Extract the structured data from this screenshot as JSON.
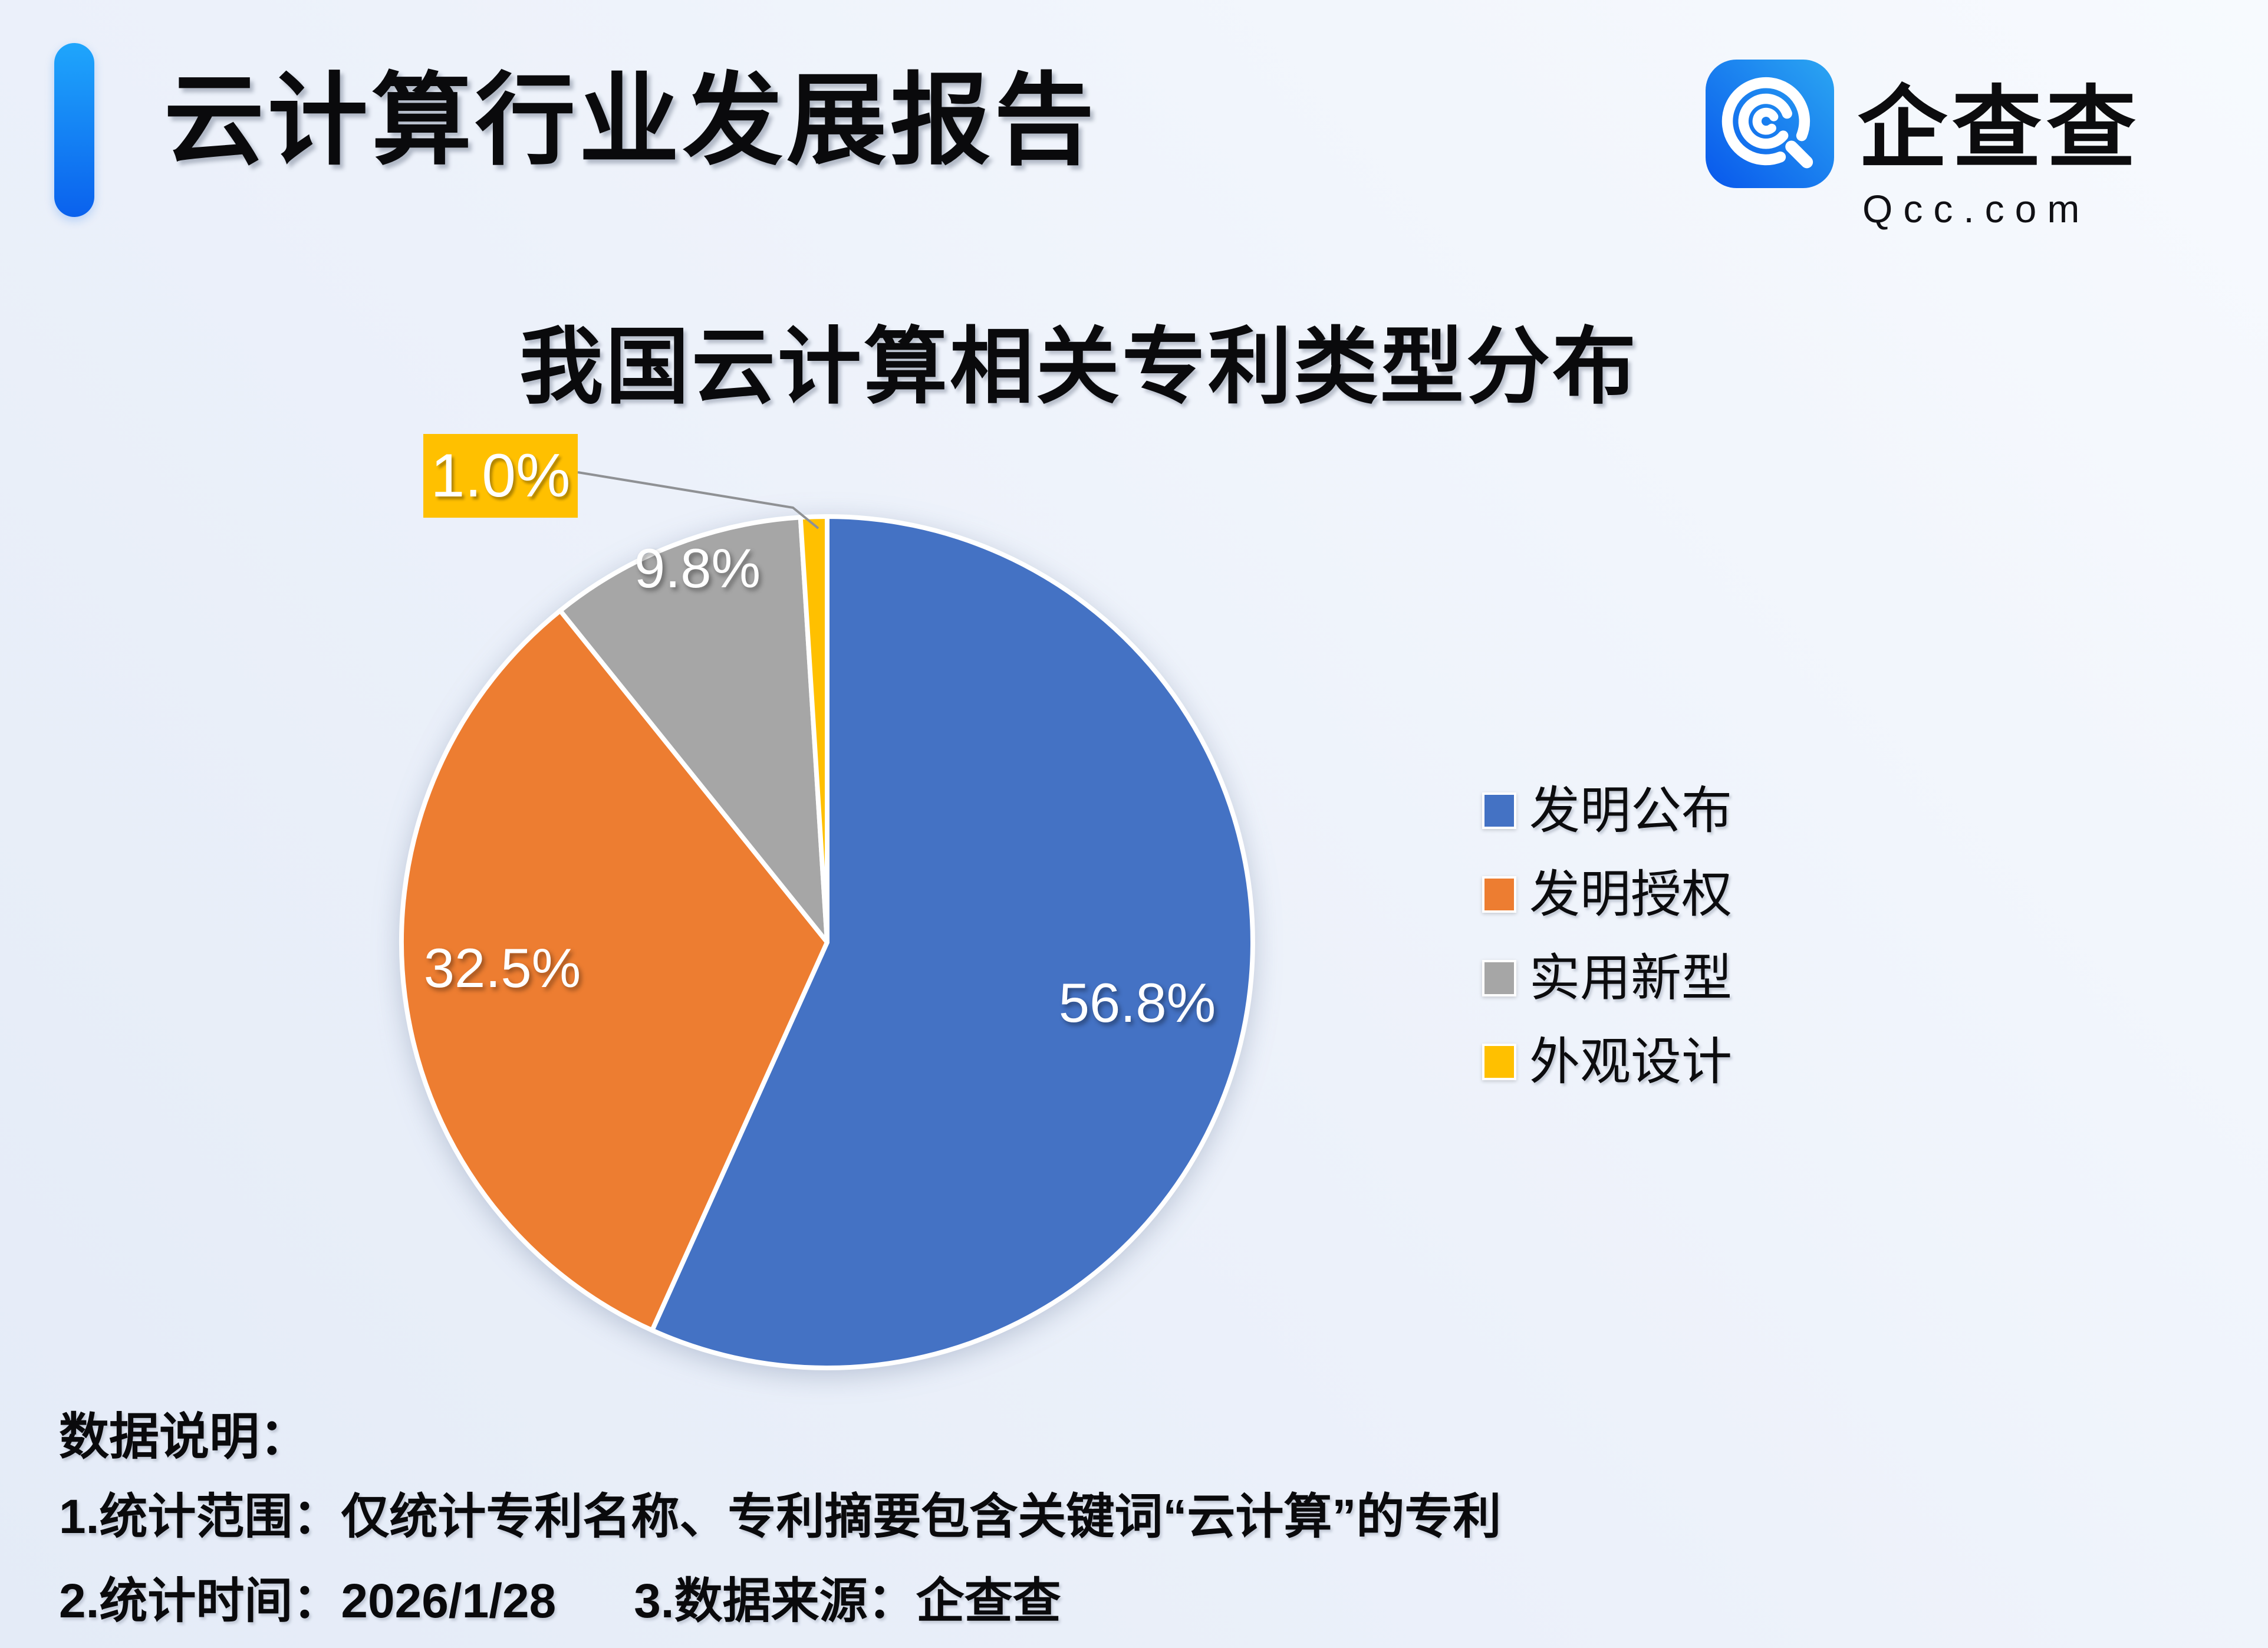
{
  "header": {
    "title": "云计算行业发展报告"
  },
  "brand": {
    "name": "企查查",
    "domain": "Qcc.com",
    "icon": "qcc-magnifier-logo"
  },
  "chart_data": {
    "type": "pie",
    "title": "我国云计算相关专利类型分布",
    "categories": [
      "发明公布",
      "发明授权",
      "实用新型",
      "外观设计"
    ],
    "values": [
      56.8,
      32.5,
      9.8,
      1.0
    ],
    "labels": [
      "56.8%",
      "32.5%",
      "9.8%",
      "1.0%"
    ],
    "colors": [
      "#4472C4",
      "#ED7D31",
      "#A6A6A6",
      "#FFC000"
    ],
    "legend_position": "right",
    "start_angle_deg": 0,
    "direction": "clockwise",
    "smallest_slice_label": "callout-with-leader-line"
  },
  "footnotes": {
    "heading": "数据说明：",
    "scope": "1.统计范围：仅统计专利名称、专利摘要包含关键词“云计算”的专利",
    "time": "2.统计时间：2026/1/28",
    "source": "3.数据来源：企查查"
  },
  "colors": {
    "accent_blue_top": "#1FA6FC",
    "accent_blue_bottom": "#0A61ED",
    "callout_bg": "#FFC000",
    "leader_line": "#8F9194"
  }
}
